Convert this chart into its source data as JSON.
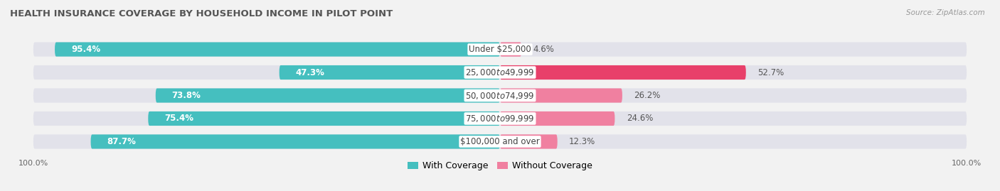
{
  "title": "HEALTH INSURANCE COVERAGE BY HOUSEHOLD INCOME IN PILOT POINT",
  "source": "Source: ZipAtlas.com",
  "categories": [
    "Under $25,000",
    "$25,000 to $49,999",
    "$50,000 to $74,999",
    "$75,000 to $99,999",
    "$100,000 and over"
  ],
  "with_coverage": [
    95.4,
    47.3,
    73.8,
    75.4,
    87.7
  ],
  "without_coverage": [
    4.6,
    52.7,
    26.2,
    24.6,
    12.3
  ],
  "color_with": "#45bfbf",
  "color_without": "#f080a0",
  "color_without_row2": "#e8406a",
  "bar_height": 0.62,
  "bg_color": "#f2f2f2",
  "bar_bg_color": "#e2e2ea",
  "title_fontsize": 9.5,
  "label_fontsize": 8.5,
  "legend_fontsize": 9,
  "pct_inside_fontsize": 8.5,
  "pct_outside_fontsize": 8.5
}
